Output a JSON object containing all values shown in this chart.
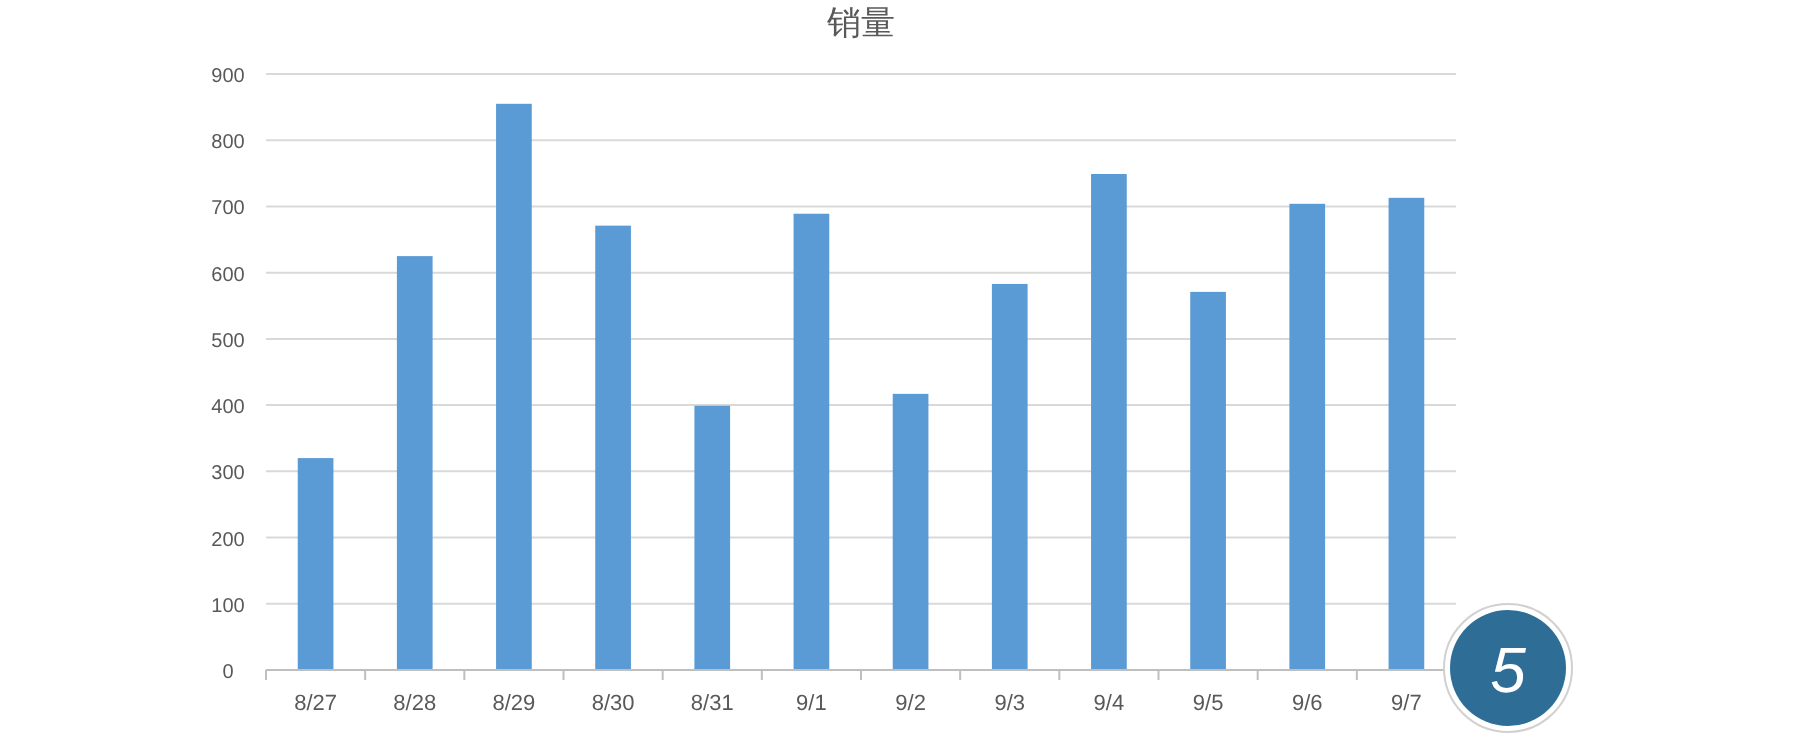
{
  "chart_data": {
    "type": "bar",
    "title": "销量",
    "categories": [
      "8/27",
      "8/28",
      "8/29",
      "8/30",
      "8/31",
      "9/1",
      "9/2",
      "9/3",
      "9/4",
      "9/5",
      "9/6",
      "9/7"
    ],
    "values": [
      320,
      625,
      855,
      671,
      399,
      689,
      417,
      583,
      749,
      571,
      704,
      713
    ],
    "color": "#5b9bd5",
    "ylim": [
      0,
      900
    ],
    "yticks": [
      0,
      100,
      200,
      300,
      400,
      500,
      600,
      700,
      800,
      900
    ],
    "grid": "y",
    "annotations": [
      "5"
    ]
  }
}
